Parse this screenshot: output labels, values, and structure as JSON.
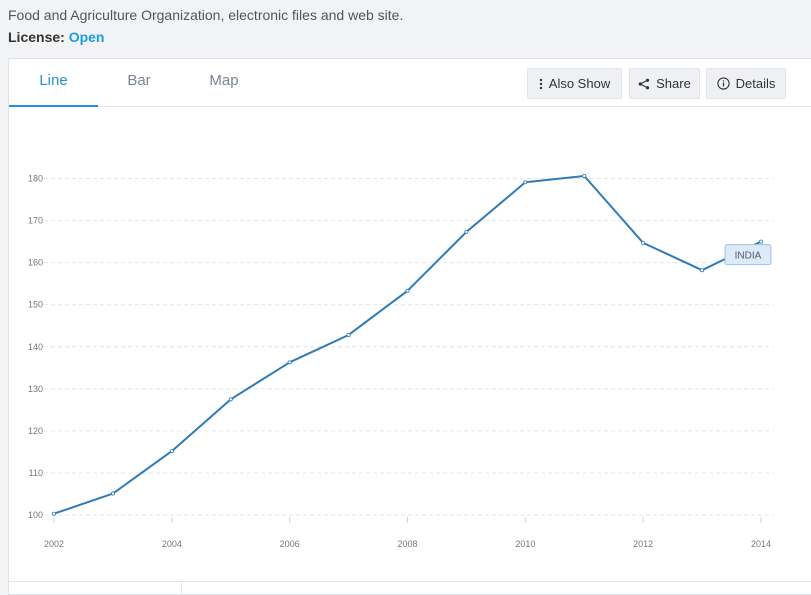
{
  "source": {
    "text": "Food and Agriculture Organization, electronic files and web site."
  },
  "license": {
    "label": "License:",
    "value": "Open",
    "link_color": "#1a9ee0"
  },
  "tabs": [
    {
      "label": "Line",
      "active": true
    },
    {
      "label": "Bar",
      "active": false
    },
    {
      "label": "Map",
      "active": false
    }
  ],
  "toolbar": {
    "also_show_label": "Also Show",
    "also_show_icon": "vertical-dots-icon",
    "share_label": "Share",
    "share_icon": "share-icon",
    "details_label": "Details",
    "details_icon": "info-circle-icon"
  },
  "colors": {
    "accent": "#2a8ed8",
    "line": "#2f7bb6",
    "tag_bg": "#dcebf7"
  },
  "chart_data": {
    "type": "line",
    "title": "",
    "xlabel": "",
    "ylabel": "",
    "x": [
      2002,
      2003,
      2004,
      2005,
      2006,
      2007,
      2008,
      2009,
      2010,
      2011,
      2012,
      2013,
      2014
    ],
    "series": [
      {
        "name": "INDIA",
        "values": [
          100.3,
          105.1,
          115.2,
          127.5,
          136.3,
          142.8,
          153.3,
          167.3,
          179.1,
          180.6,
          164.7,
          158.2,
          165.0
        ]
      }
    ],
    "xticks": [
      2002,
      2004,
      2006,
      2008,
      2010,
      2012,
      2014
    ],
    "yticks": [
      100,
      110,
      120,
      130,
      140,
      150,
      160,
      170,
      180
    ],
    "xlim": [
      2002,
      2014
    ],
    "ylim": [
      100,
      180
    ],
    "grid": "horizontal dashed"
  }
}
